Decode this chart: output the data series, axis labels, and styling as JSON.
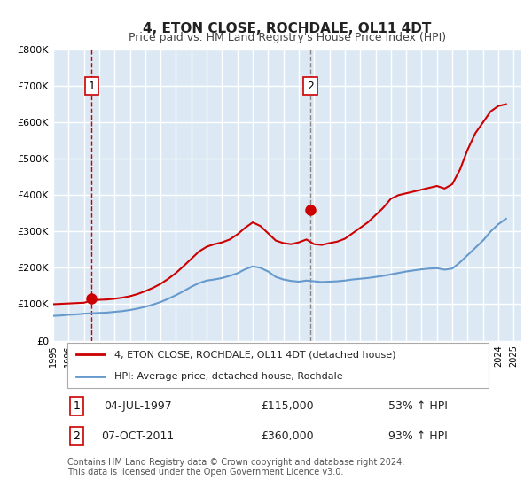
{
  "title": "4, ETON CLOSE, ROCHDALE, OL11 4DT",
  "subtitle": "Price paid vs. HM Land Registry's House Price Index (HPI)",
  "title_fontsize": 13,
  "subtitle_fontsize": 10,
  "background_color": "#ffffff",
  "plot_bg_color": "#dce9f5",
  "grid_color": "#ffffff",
  "ylabel": "",
  "ylim": [
    0,
    800000
  ],
  "yticks": [
    0,
    100000,
    200000,
    300000,
    400000,
    500000,
    600000,
    700000,
    800000
  ],
  "ytick_labels": [
    "£0",
    "£100K",
    "£200K",
    "£300K",
    "£400K",
    "£500K",
    "£600K",
    "£700K",
    "£800K"
  ],
  "xlim_start": 1995.0,
  "xlim_end": 2025.5,
  "xticks": [
    1995,
    1996,
    1997,
    1998,
    1999,
    2000,
    2001,
    2002,
    2003,
    2004,
    2005,
    2006,
    2007,
    2008,
    2009,
    2010,
    2011,
    2012,
    2013,
    2014,
    2015,
    2016,
    2017,
    2018,
    2019,
    2020,
    2021,
    2022,
    2023,
    2024,
    2025
  ],
  "red_line_color": "#cc0000",
  "blue_line_color": "#6699cc",
  "sale1_x": 1997.5,
  "sale1_y": 115000,
  "sale1_label": "1",
  "sale1_date": "04-JUL-1997",
  "sale1_price": "£115,000",
  "sale1_hpi": "53% ↑ HPI",
  "sale2_x": 2011.75,
  "sale2_y": 360000,
  "sale2_label": "2",
  "sale2_date": "07-OCT-2011",
  "sale2_price": "£360,000",
  "sale2_hpi": "93% ↑ HPI",
  "legend_line1": "4, ETON CLOSE, ROCHDALE, OL11 4DT (detached house)",
  "legend_line2": "HPI: Average price, detached house, Rochdale",
  "footnote": "Contains HM Land Registry data © Crown copyright and database right 2024.\nThis data is licensed under the Open Government Licence v3.0.",
  "hpi_line": {
    "x": [
      1995.0,
      1995.5,
      1996.0,
      1996.5,
      1997.0,
      1997.5,
      1998.0,
      1998.5,
      1999.0,
      1999.5,
      2000.0,
      2000.5,
      2001.0,
      2001.5,
      2002.0,
      2002.5,
      2003.0,
      2003.5,
      2004.0,
      2004.5,
      2005.0,
      2005.5,
      2006.0,
      2006.5,
      2007.0,
      2007.5,
      2008.0,
      2008.5,
      2009.0,
      2009.5,
      2010.0,
      2010.5,
      2011.0,
      2011.5,
      2012.0,
      2012.5,
      2013.0,
      2013.5,
      2014.0,
      2014.5,
      2015.0,
      2015.5,
      2016.0,
      2016.5,
      2017.0,
      2017.5,
      2018.0,
      2018.5,
      2019.0,
      2019.5,
      2020.0,
      2020.5,
      2021.0,
      2021.5,
      2022.0,
      2022.5,
      2023.0,
      2023.5,
      2024.0,
      2024.5
    ],
    "y": [
      68000,
      69000,
      71000,
      72000,
      74000,
      75000,
      76000,
      77000,
      79000,
      81000,
      84000,
      88000,
      93000,
      99000,
      106000,
      115000,
      125000,
      136000,
      148000,
      158000,
      165000,
      168000,
      172000,
      178000,
      185000,
      196000,
      204000,
      200000,
      190000,
      175000,
      168000,
      164000,
      162000,
      165000,
      163000,
      161000,
      162000,
      163000,
      165000,
      168000,
      170000,
      172000,
      175000,
      178000,
      182000,
      186000,
      190000,
      193000,
      196000,
      198000,
      199000,
      195000,
      198000,
      215000,
      235000,
      255000,
      275000,
      300000,
      320000,
      335000
    ]
  },
  "price_line": {
    "x": [
      1995.0,
      1995.5,
      1996.0,
      1996.5,
      1997.0,
      1997.5,
      1998.0,
      1998.5,
      1999.0,
      1999.5,
      2000.0,
      2000.5,
      2001.0,
      2001.5,
      2002.0,
      2002.5,
      2003.0,
      2003.5,
      2004.0,
      2004.5,
      2005.0,
      2005.5,
      2006.0,
      2006.5,
      2007.0,
      2007.5,
      2008.0,
      2008.5,
      2009.0,
      2009.5,
      2010.0,
      2010.5,
      2011.0,
      2011.5,
      2012.0,
      2012.5,
      2013.0,
      2013.5,
      2014.0,
      2014.5,
      2015.0,
      2015.5,
      2016.0,
      2016.5,
      2017.0,
      2017.5,
      2018.0,
      2018.5,
      2019.0,
      2019.5,
      2020.0,
      2020.5,
      2021.0,
      2021.5,
      2022.0,
      2022.5,
      2023.0,
      2023.5,
      2024.0,
      2024.5
    ],
    "y": [
      100000,
      101000,
      102000,
      103000,
      104000,
      110000,
      112000,
      113000,
      115000,
      118000,
      122000,
      128000,
      136000,
      145000,
      156000,
      170000,
      186000,
      205000,
      225000,
      245000,
      258000,
      265000,
      270000,
      278000,
      292000,
      310000,
      325000,
      315000,
      295000,
      275000,
      268000,
      265000,
      270000,
      278000,
      265000,
      263000,
      268000,
      272000,
      280000,
      295000,
      310000,
      325000,
      345000,
      365000,
      390000,
      400000,
      405000,
      410000,
      415000,
      420000,
      425000,
      418000,
      430000,
      470000,
      525000,
      570000,
      600000,
      630000,
      645000,
      650000
    ]
  }
}
